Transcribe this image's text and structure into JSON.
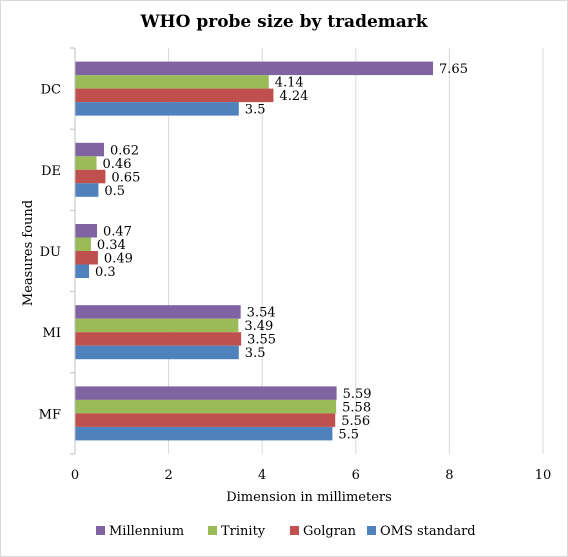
{
  "chart_data": {
    "type": "bar",
    "orientation": "horizontal",
    "title": "WHO probe size by trademark",
    "xlabel": "Dimension in millimeters",
    "ylabel": "Measures found",
    "xlim": [
      0,
      10
    ],
    "xticks": [
      0,
      2,
      4,
      6,
      8,
      10
    ],
    "categories": [
      "DC",
      "DE",
      "DU",
      "MI",
      "MF"
    ],
    "series": [
      {
        "name": "Millennium",
        "color": "#8064a2",
        "values": [
          7.65,
          0.62,
          0.47,
          3.54,
          5.59
        ]
      },
      {
        "name": "Trinity",
        "color": "#9bbb59",
        "values": [
          4.14,
          0.46,
          0.34,
          3.49,
          5.58
        ]
      },
      {
        "name": "Golgran",
        "color": "#c0504d",
        "values": [
          4.24,
          0.65,
          0.49,
          3.55,
          5.56
        ]
      },
      {
        "name": "OMS standard",
        "color": "#4f81bd",
        "values": [
          3.5,
          0.5,
          0.3,
          3.5,
          5.5
        ]
      }
    ],
    "grid": "vertical",
    "legend_position": "bottom"
  }
}
